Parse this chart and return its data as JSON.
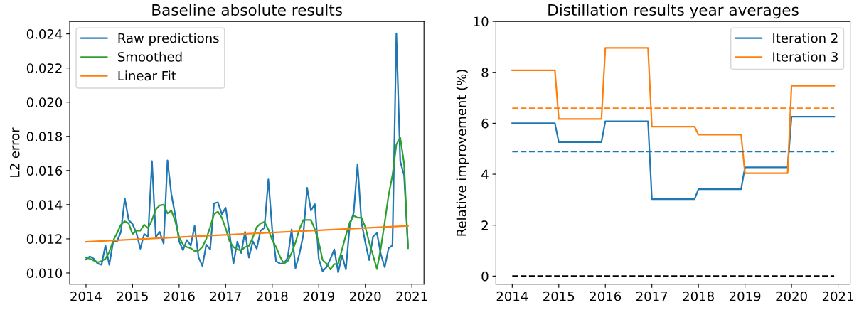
{
  "chart_data": [
    {
      "type": "line",
      "title": "Baseline absolute results",
      "ylabel": "L2 error",
      "x": [
        2014,
        2014.083,
        2014.167,
        2014.25,
        2014.333,
        2014.417,
        2014.5,
        2014.583,
        2014.667,
        2014.75,
        2014.833,
        2014.917,
        2015,
        2015.083,
        2015.167,
        2015.25,
        2015.333,
        2015.417,
        2015.5,
        2015.583,
        2015.667,
        2015.75,
        2015.833,
        2015.917,
        2016,
        2016.083,
        2016.167,
        2016.25,
        2016.333,
        2016.417,
        2016.5,
        2016.583,
        2016.667,
        2016.75,
        2016.833,
        2016.917,
        2017,
        2017.083,
        2017.167,
        2017.25,
        2017.333,
        2017.417,
        2017.5,
        2017.583,
        2017.667,
        2017.75,
        2017.833,
        2017.917,
        2018,
        2018.083,
        2018.167,
        2018.25,
        2018.333,
        2018.417,
        2018.5,
        2018.583,
        2018.667,
        2018.75,
        2018.833,
        2018.917,
        2019,
        2019.083,
        2019.167,
        2019.25,
        2019.333,
        2019.417,
        2019.5,
        2019.583,
        2019.667,
        2019.75,
        2019.833,
        2019.917,
        2020,
        2020.083,
        2020.167,
        2020.25,
        2020.333,
        2020.417,
        2020.5,
        2020.583,
        2020.667,
        2020.75,
        2020.833,
        2020.917
      ],
      "series": [
        {
          "name": "Raw predictions",
          "color": "#1f77b4",
          "values": [
            0.01079,
            0.01097,
            0.01083,
            0.01055,
            0.01048,
            0.01161,
            0.01048,
            0.01183,
            0.01186,
            0.01241,
            0.01437,
            0.0131,
            0.01286,
            0.01234,
            0.01142,
            0.01228,
            0.01214,
            0.01655,
            0.01211,
            0.01241,
            0.01172,
            0.01659,
            0.01462,
            0.01338,
            0.01186,
            0.01134,
            0.01193,
            0.01161,
            0.01276,
            0.01092,
            0.01041,
            0.01166,
            0.01138,
            0.01407,
            0.01414,
            0.01345,
            0.01382,
            0.01234,
            0.01055,
            0.01183,
            0.01117,
            0.01241,
            0.0109,
            0.01186,
            0.01142,
            0.01248,
            0.01265,
            0.01548,
            0.01255,
            0.01069,
            0.01055,
            0.01055,
            0.0109,
            0.01255,
            0.01028,
            0.0111,
            0.01221,
            0.01499,
            0.01366,
            0.01403,
            0.01083,
            0.0101,
            0.01034,
            0.01083,
            0.01138,
            0.01004,
            0.01103,
            0.01021,
            0.01283,
            0.01352,
            0.01637,
            0.01297,
            0.01179,
            0.01076,
            0.01214,
            0.01234,
            0.0111,
            0.01034,
            0.01145,
            0.01161,
            0.02403,
            0.01655,
            0.01572,
            0.01152
          ]
        },
        {
          "name": "Smoothed",
          "color": "#2ca02c",
          "values": [
            0.0109,
            0.01083,
            0.01073,
            0.01062,
            0.01069,
            0.01083,
            0.01124,
            0.01189,
            0.01234,
            0.01283,
            0.01303,
            0.0129,
            0.01228,
            0.01248,
            0.01248,
            0.01283,
            0.01262,
            0.0131,
            0.01372,
            0.01396,
            0.014,
            0.01349,
            0.01366,
            0.01303,
            0.01211,
            0.01166,
            0.01152,
            0.01145,
            0.01128,
            0.01131,
            0.01152,
            0.012,
            0.01269,
            0.01345,
            0.01359,
            0.01324,
            0.01262,
            0.01186,
            0.01152,
            0.01138,
            0.01131,
            0.01152,
            0.01159,
            0.01207,
            0.01269,
            0.0129,
            0.01299,
            0.01255,
            0.01193,
            0.01152,
            0.01097,
            0.01055,
            0.01069,
            0.01117,
            0.01179,
            0.01255,
            0.0131,
            0.0131,
            0.0131,
            0.01255,
            0.01179,
            0.01076,
            0.01055,
            0.01021,
            0.01051,
            0.01055,
            0.01138,
            0.01221,
            0.01297,
            0.01335,
            0.01324,
            0.01324,
            0.01269,
            0.01179,
            0.01103,
            0.01023,
            0.01145,
            0.01297,
            0.01455,
            0.01572,
            0.01752,
            0.01793,
            0.01641,
            0.01145
          ]
        },
        {
          "name": "Linear Fit",
          "color": "#ff7f0e",
          "x": [
            2014,
            2020.917
          ],
          "values": [
            0.01183,
            0.01276
          ]
        }
      ],
      "xlim": [
        2013.65,
        2021.26
      ],
      "xticks": [
        2014,
        2015,
        2016,
        2017,
        2018,
        2019,
        2020,
        2021
      ],
      "ylim": [
        0.00934,
        0.02473
      ],
      "yticks": [
        {
          "value": 0.01,
          "label": "0.010"
        },
        {
          "value": 0.012,
          "label": "0.012"
        },
        {
          "value": 0.014,
          "label": "0.014"
        },
        {
          "value": 0.016,
          "label": "0.016"
        },
        {
          "value": 0.018,
          "label": "0.018"
        },
        {
          "value": 0.02,
          "label": "0.020"
        },
        {
          "value": 0.022,
          "label": "0.022"
        },
        {
          "value": 0.024,
          "label": "0.024"
        }
      ],
      "legend": "top left",
      "grid": false
    },
    {
      "type": "line",
      "title": "Distillation results year averages",
      "ylabel": "Relative improvement (%)",
      "x": [
        2014,
        2014.917,
        2015,
        2015.917,
        2016,
        2016.917,
        2017,
        2017.917,
        2018,
        2018.917,
        2019,
        2019.917,
        2020,
        2020.917
      ],
      "series": [
        {
          "name": "Iteration 2",
          "color": "#1f77b4",
          "values": [
            6.0,
            6.0,
            5.26,
            5.26,
            6.08,
            6.08,
            3.02,
            3.02,
            3.41,
            3.41,
            4.27,
            4.27,
            6.26,
            6.26
          ]
        },
        {
          "name": "Iteration 3",
          "color": "#ff7f0e",
          "values": [
            8.08,
            8.08,
            6.17,
            6.17,
            8.96,
            8.96,
            5.87,
            5.87,
            5.55,
            5.55,
            4.04,
            4.04,
            7.47,
            7.47
          ]
        }
      ],
      "ref_lines": [
        {
          "axis": "y",
          "value": 6.59,
          "color": "#ff7f0e",
          "line_style": "dashed"
        },
        {
          "axis": "y",
          "value": 4.89,
          "color": "#1f77b4",
          "line_style": "dashed"
        },
        {
          "axis": "y",
          "value": 0,
          "color": "#000000",
          "line_style": "dashed"
        }
      ],
      "xlim": [
        2013.65,
        2021.26
      ],
      "xticks": [
        2014,
        2015,
        2016,
        2017,
        2018,
        2019,
        2020,
        2021
      ],
      "ylim": [
        -0.32,
        10
      ],
      "yticks": [
        0,
        2,
        4,
        6,
        8,
        10
      ],
      "legend": "top right",
      "grid": false
    }
  ]
}
